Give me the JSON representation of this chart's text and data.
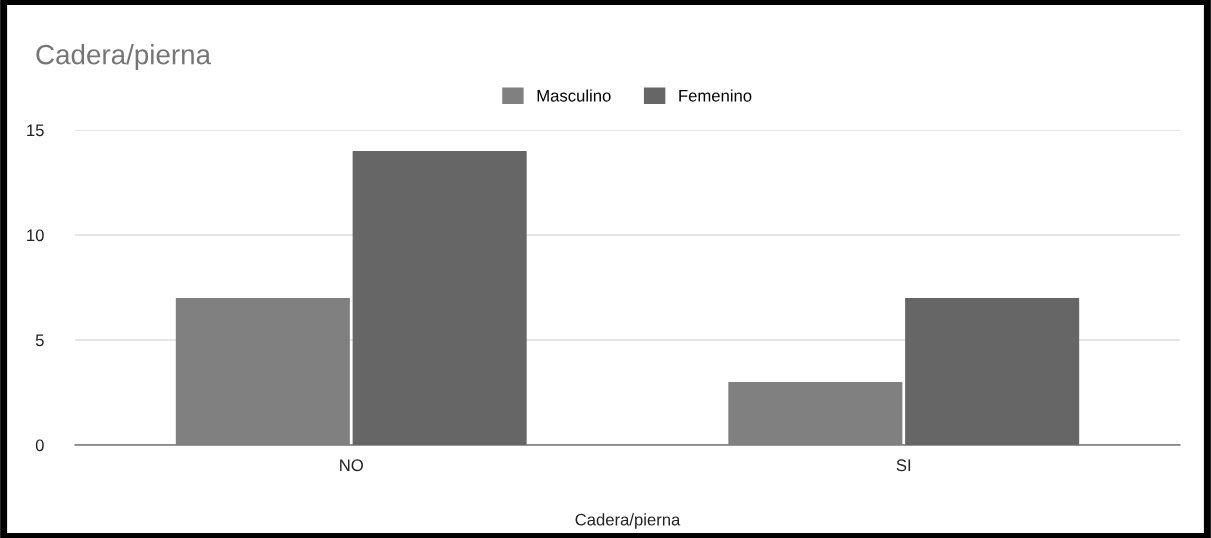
{
  "chart_data": {
    "type": "bar",
    "title": "Cadera/pierna",
    "xlabel": "Cadera/pierna",
    "categories": [
      "NO",
      "SI"
    ],
    "series": [
      {
        "name": "Masculino",
        "color": "#808080",
        "values": [
          7,
          3
        ]
      },
      {
        "name": "Femenino",
        "color": "#666666",
        "values": [
          14,
          7
        ]
      }
    ],
    "ylim": [
      0,
      15
    ],
    "yticks": [
      0,
      5,
      10,
      15
    ],
    "grid": "y",
    "legend": "top"
  }
}
